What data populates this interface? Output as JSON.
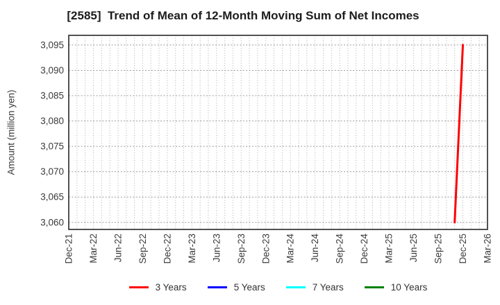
{
  "page": {
    "background": "#ffffff"
  },
  "chart_data": {
    "type": "line",
    "title": "[2585]  Trend of Mean of 12-Month Moving Sum of Net Incomes",
    "ylabel": "Amount (million yen)",
    "x_axis": {
      "unit": "month",
      "months_total": 52,
      "tick_month_step": 3,
      "tick_labels": [
        "Dec-21",
        "Mar-22",
        "Jun-22",
        "Sep-22",
        "Dec-22",
        "Mar-23",
        "Jun-23",
        "Sep-23",
        "Dec-23",
        "Mar-24",
        "Jun-24",
        "Sep-24",
        "Dec-24",
        "Mar-25",
        "Jun-25",
        "Sep-25",
        "Dec-25",
        "Mar-26"
      ],
      "minor_grid": "monthly"
    },
    "y_axis": {
      "ticks": [
        {
          "value": 3060,
          "label": "3,060"
        },
        {
          "value": 3065,
          "label": "3,065"
        },
        {
          "value": 3070,
          "label": "3,070"
        },
        {
          "value": 3075,
          "label": "3,075"
        },
        {
          "value": 3080,
          "label": "3,080"
        },
        {
          "value": 3085,
          "label": "3,085"
        },
        {
          "value": 3090,
          "label": "3,090"
        },
        {
          "value": 3095,
          "label": "3,095"
        }
      ],
      "ylim": [
        3058.6,
        3096.9
      ]
    },
    "grid": {
      "on": true,
      "style": "dotted",
      "color": "#a6a6a6"
    },
    "legend": [
      {
        "label": "3 Years",
        "color": "#ff0000"
      },
      {
        "label": "5 Years",
        "color": "#0000ff"
      },
      {
        "label": "7 Years",
        "color": "#00ffff"
      },
      {
        "label": "10 Years",
        "color": "#008000"
      }
    ],
    "series": [
      {
        "name": "3 Years",
        "color": "#ff0000",
        "points": [
          {
            "label": "Nov-25",
            "month_index": 47,
            "value": 3060
          },
          {
            "label": "Dec-25",
            "month_index": 48,
            "value": 3095
          }
        ]
      },
      {
        "name": "5 Years",
        "color": "#0000ff",
        "points": []
      },
      {
        "name": "7 Years",
        "color": "#00ffff",
        "points": []
      },
      {
        "name": "10 Years",
        "color": "#008000",
        "points": []
      }
    ]
  }
}
